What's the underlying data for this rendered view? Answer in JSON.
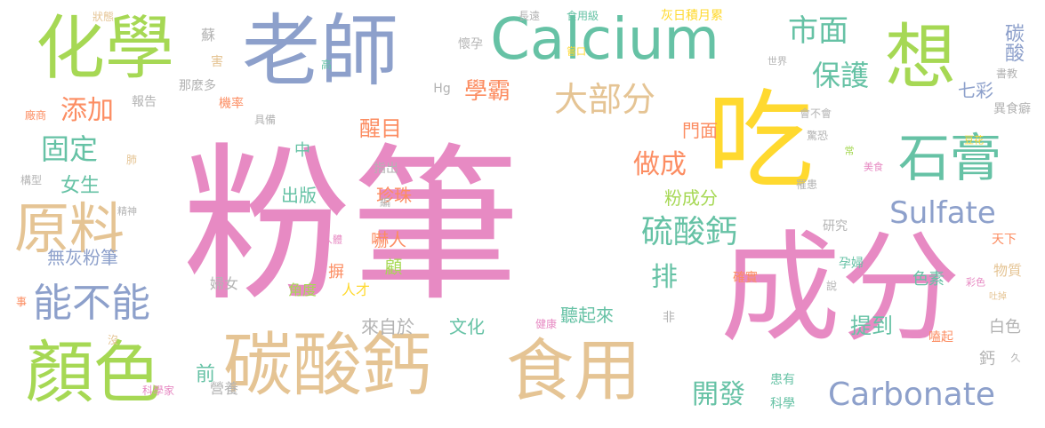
{
  "palette": {
    "pink": "#e78ac3",
    "green": "#a6d854",
    "teal": "#66c2a5",
    "blue": "#8da0cb",
    "orange": "#fc8d62",
    "yellow": "#ffd92f",
    "tan": "#e5c494",
    "gray": "#b3b3b3"
  },
  "words": [
    "粉筆",
    "成分",
    "吃",
    "老師",
    "化學",
    "Calcium",
    "想",
    "碳酸鈣",
    "食用",
    "顏色",
    "原料",
    "石膏",
    "Carbonate",
    "Sulfate",
    "能不能",
    "硫酸鈣",
    "市面",
    "保護",
    "大部分",
    "添加",
    "固定",
    "做成",
    "學霸",
    "碳酸",
    "七彩",
    "開發",
    "排",
    "提到",
    "無灰粉筆",
    "女生",
    "醒目",
    "門面",
    "粉成分",
    "珍珠",
    "嚇人",
    "出版",
    "前",
    "文化",
    "聽起來",
    "來自於",
    "顧",
    "摒",
    "角度",
    "人才",
    "婦女",
    "營養",
    "科學家",
    "患有",
    "科學",
    "色素",
    "物質",
    "白色",
    "鈣",
    "久",
    "嗑起",
    "確實",
    "健康",
    "非",
    "說",
    "吐掉",
    "彩色",
    "孕婦",
    "天下",
    "研究",
    "人體",
    "精神",
    "構型",
    "肺",
    "事",
    "沒",
    "廠商",
    "報告",
    "那麼多",
    "機率",
    "具備",
    "指出",
    "中",
    "編",
    "Hg",
    "害",
    "蘇",
    "狀態",
    "高",
    "長遠",
    "懷孕",
    "食用級",
    "嘗口",
    "世界",
    "灰日積月累",
    "書教",
    "異食癖",
    "會不會",
    "驚恐",
    "常",
    "豆花",
    "美食",
    "罹患"
  ]
}
